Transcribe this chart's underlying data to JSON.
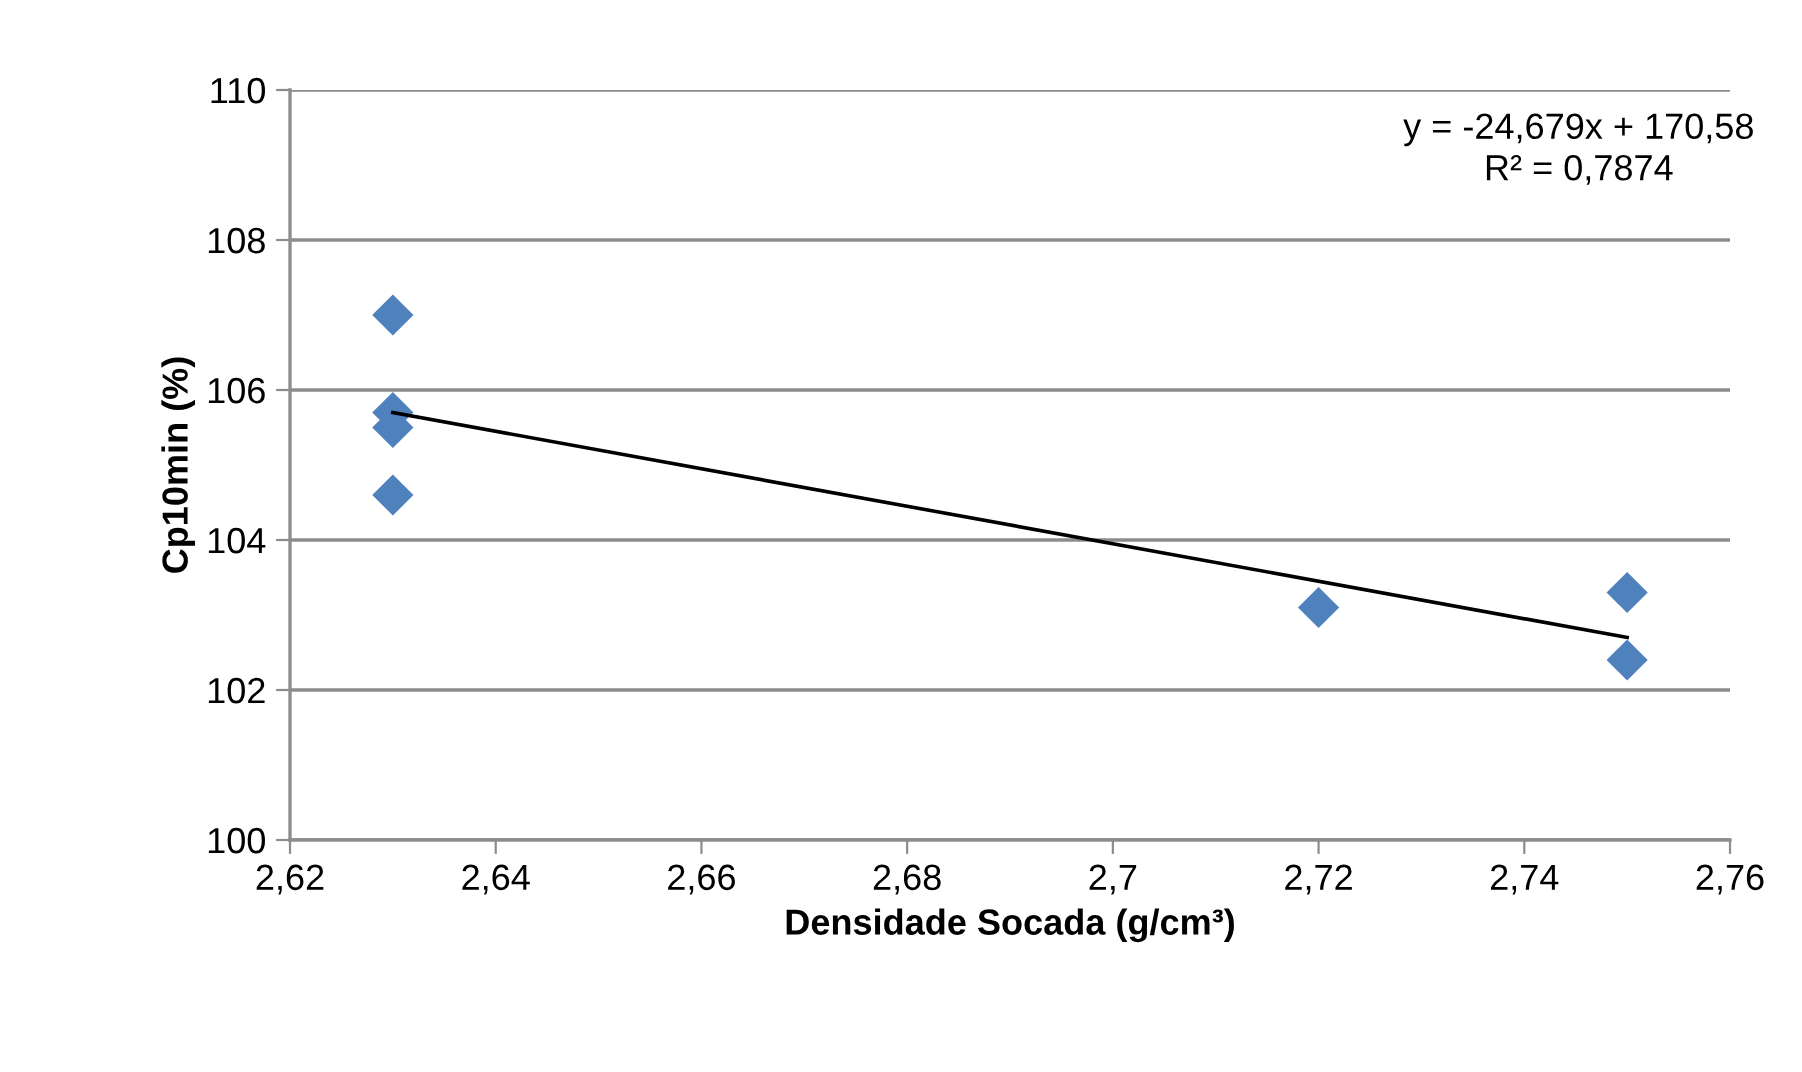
{
  "chart_data": {
    "type": "scatter",
    "xlabel": "Densidade Socada (g/cm³)",
    "ylabel": "Cp10min (%)",
    "series": [
      {
        "color": "#4f81bd",
        "marker": "diamond",
        "x": [
          2.63,
          2.63,
          2.63,
          2.63,
          2.72,
          2.75,
          2.75
        ],
        "values": [
          107.0,
          105.7,
          105.5,
          104.6,
          103.1,
          103.3,
          102.4
        ]
      },
      {
        "type": "line",
        "color": "#000000",
        "marker": "none",
        "line_style": "solid",
        "x": [
          2.63,
          2.75
        ],
        "values": [
          105.7,
          102.7
        ]
      }
    ],
    "xlim": [
      2.62,
      2.76
    ],
    "xticks": [
      {
        "value": 2.62,
        "label": "2,62"
      },
      {
        "value": 2.64,
        "label": "2,64"
      },
      {
        "value": 2.66,
        "label": "2,66"
      },
      {
        "value": 2.68,
        "label": "2,68"
      },
      {
        "value": 2.7,
        "label": "2,7"
      },
      {
        "value": 2.72,
        "label": "2,72"
      },
      {
        "value": 2.74,
        "label": "2,74"
      },
      {
        "value": 2.76,
        "label": "2,76"
      }
    ],
    "ylim": [
      100,
      110
    ],
    "yticks": [
      100,
      102,
      104,
      106,
      108,
      110
    ],
    "grid": "y",
    "legend": false,
    "annotations": [
      "y = -24,679x + 170,58\nR² = 0,7874"
    ]
  }
}
